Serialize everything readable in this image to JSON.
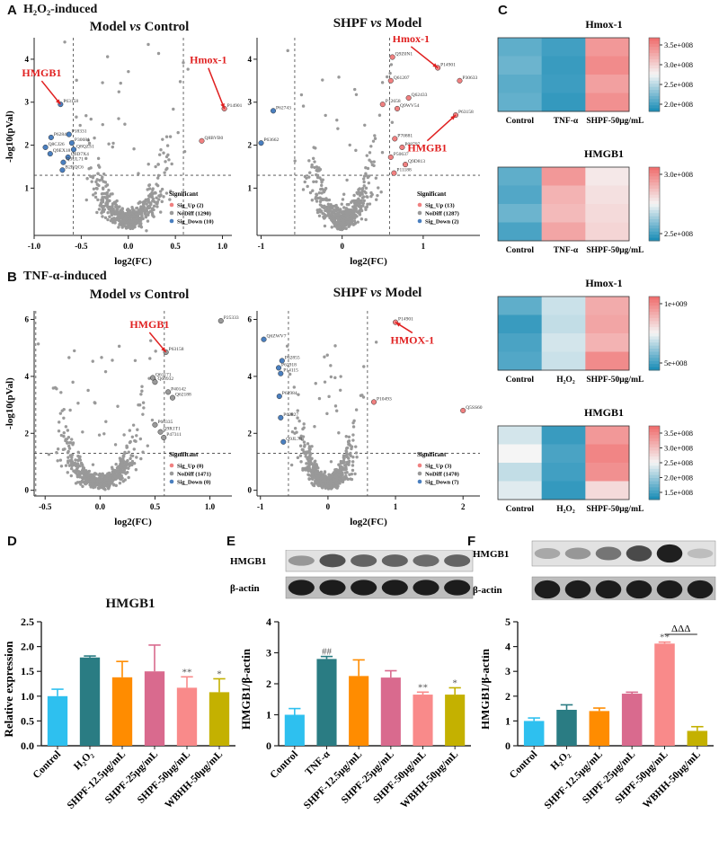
{
  "labels": {
    "A": "A",
    "A_sub": "H₂O₂-induced",
    "B": "B",
    "B_sub": "TNF-α-induced",
    "C": "C",
    "D": "D",
    "E": "E",
    "F": "F"
  },
  "colors": {
    "up": "#f08080",
    "down": "#4a7fbf",
    "nodiff": "#999999",
    "arrow": "#e02020",
    "heat_low": "#1f8fb8",
    "heat_mid": "#f5f5f5",
    "heat_high": "#f07070"
  },
  "volcano": [
    {
      "id": "A1",
      "title": "Model vs Control",
      "xlabel": "log2(FC)",
      "ylabel": "-log10(pVal)",
      "xlim": [
        -1.0,
        1.1
      ],
      "ylim": [
        -0.1,
        4.5
      ],
      "xticks": [
        "-1.0",
        "-0.5",
        "0.0",
        "0.5",
        "1.0"
      ],
      "xtick_vals": [
        -1.0,
        -0.5,
        0.0,
        0.5,
        1.0
      ],
      "yticks": [
        "1",
        "2",
        "3",
        "4"
      ],
      "ytick_vals": [
        1,
        2,
        3,
        4
      ],
      "vlines": [
        -0.585,
        0.585
      ],
      "hline": 1.3,
      "legend_title": "Significant",
      "legend": [
        "Sig_Up (2)",
        "NoDiff (1290)",
        "Sig_Down (10)"
      ],
      "points": [
        {
          "label": "P14901",
          "x": 1.02,
          "y": 2.85,
          "cls": "up"
        },
        {
          "label": "Q8BVB0",
          "x": 0.78,
          "y": 2.1,
          "cls": "up"
        },
        {
          "label": "P63158",
          "x": -0.72,
          "y": 2.95,
          "cls": "down"
        },
        {
          "label": "P62843",
          "x": -0.82,
          "y": 2.18,
          "cls": "down"
        },
        {
          "label": "P30681",
          "x": -0.6,
          "y": 2.05,
          "cls": "down"
        },
        {
          "label": "P18331",
          "x": -0.63,
          "y": 2.25,
          "cls": "down"
        },
        {
          "label": "Q8CJ26",
          "x": -0.88,
          "y": 1.95,
          "cls": "down"
        },
        {
          "label": "Q8QZS1",
          "x": -0.58,
          "y": 1.9,
          "cls": "down"
        },
        {
          "label": "Q9EX18",
          "x": -0.83,
          "y": 1.8,
          "cls": "down"
        },
        {
          "label": "Q9D7X4",
          "x": -0.64,
          "y": 1.72,
          "cls": "down"
        },
        {
          "label": "Q3UL71",
          "x": -0.69,
          "y": 1.6,
          "cls": "down"
        },
        {
          "label": "B2RQC6",
          "x": -0.7,
          "y": 1.42,
          "cls": "down"
        }
      ],
      "annotations": [
        {
          "text": "HMGB1",
          "target": 2,
          "tx": -0.92,
          "ty": 3.6
        },
        {
          "text": "Hmox-1",
          "target": 0,
          "tx": 0.85,
          "ty": 3.9
        }
      ],
      "cloud": {
        "n": 520,
        "xsd": 0.2,
        "curv": 11,
        "ymax": 4.4
      }
    },
    {
      "id": "A2",
      "title": "SHPF vs Model",
      "xlabel": "log2(FC)",
      "ylabel": "",
      "xlim": [
        -1.05,
        1.7
      ],
      "ylim": [
        -0.1,
        4.5
      ],
      "xticks": [
        "-1",
        "0",
        "1"
      ],
      "xtick_vals": [
        -1,
        0,
        1
      ],
      "yticks": [
        "1",
        "2",
        "3",
        "4"
      ],
      "ytick_vals": [
        1,
        2,
        3,
        4
      ],
      "vlines": [
        -0.585,
        0.585
      ],
      "hline": 1.3,
      "legend_title": "Significant",
      "legend": [
        "Sig_Up (13)",
        "NoDiff (1287)",
        "Sig_Down (2)"
      ],
      "points": [
        {
          "label": "Q9Z0N1",
          "x": 0.62,
          "y": 4.05,
          "cls": "up"
        },
        {
          "label": "P14901",
          "x": 1.18,
          "y": 3.8,
          "cls": "up"
        },
        {
          "label": "P30633",
          "x": 1.45,
          "y": 3.5,
          "cls": "up"
        },
        {
          "label": "Q61207",
          "x": 0.6,
          "y": 3.5,
          "cls": "up"
        },
        {
          "label": "Q62433",
          "x": 0.82,
          "y": 3.1,
          "cls": "up"
        },
        {
          "label": "P12658",
          "x": 0.5,
          "y": 2.95,
          "cls": "up"
        },
        {
          "label": "Q9WV54",
          "x": 0.68,
          "y": 2.85,
          "cls": "up"
        },
        {
          "label": "P63158",
          "x": 1.4,
          "y": 2.7,
          "cls": "up"
        },
        {
          "label": "P70881",
          "x": 0.65,
          "y": 2.15,
          "cls": "up"
        },
        {
          "label": "P08797",
          "x": 0.74,
          "y": 1.95,
          "cls": "up"
        },
        {
          "label": "P50637",
          "x": 0.6,
          "y": 1.72,
          "cls": "up"
        },
        {
          "label": "Q9D813",
          "x": 0.78,
          "y": 1.55,
          "cls": "up"
        },
        {
          "label": "P11188",
          "x": 0.64,
          "y": 1.35,
          "cls": "up"
        },
        {
          "label": "P62743",
          "x": -0.85,
          "y": 2.8,
          "cls": "down"
        },
        {
          "label": "P63662",
          "x": -1.0,
          "y": 2.05,
          "cls": "down"
        }
      ],
      "annotations": [
        {
          "text": "Hmox-1",
          "target": 1,
          "tx": 0.85,
          "ty": 4.4
        },
        {
          "text": "HMGB1",
          "target": 7,
          "tx": 1.05,
          "ty": 1.85
        }
      ],
      "cloud": {
        "n": 520,
        "xsd": 0.2,
        "curv": 11,
        "ymax": 4.2
      }
    },
    {
      "id": "B1",
      "title": "Model vs Control",
      "xlabel": "log2(FC)",
      "ylabel": "-log10(pVal)",
      "xlim": [
        -0.6,
        1.2
      ],
      "ylim": [
        -0.2,
        6.3
      ],
      "xticks": [
        "-0.5",
        "0.0",
        "0.5",
        "1.0"
      ],
      "xtick_vals": [
        -0.5,
        0.0,
        0.5,
        1.0
      ],
      "yticks": [
        "0",
        "2",
        "4",
        "6"
      ],
      "ytick_vals": [
        0,
        2,
        4,
        6
      ],
      "vlines": [
        -0.585,
        0.585
      ],
      "hline": 1.3,
      "legend_title": "Significant",
      "legend": [
        "Sig_Up (0)",
        "NoDiff (1471)",
        "Sig_Down (0)"
      ],
      "points": [
        {
          "label": "P25333",
          "x": 1.1,
          "y": 5.95,
          "cls": "nd"
        },
        {
          "label": "P63158",
          "x": 0.6,
          "y": 4.85,
          "cls": "nd"
        },
        {
          "label": "Q61171",
          "x": 0.48,
          "y": 3.95,
          "cls": "nd"
        },
        {
          "label": "Q60932",
          "x": 0.5,
          "y": 3.8,
          "cls": "nd"
        },
        {
          "label": "P40142",
          "x": 0.62,
          "y": 3.45,
          "cls": "nd"
        },
        {
          "label": "Q62188",
          "x": 0.66,
          "y": 3.25,
          "cls": "nd"
        },
        {
          "label": "P60335",
          "x": 0.5,
          "y": 2.3,
          "cls": "nd"
        },
        {
          "label": "Q9R1T1",
          "x": 0.55,
          "y": 2.05,
          "cls": "nd"
        },
        {
          "label": "P47311",
          "x": 0.58,
          "y": 1.85,
          "cls": "nd"
        }
      ],
      "annotations": [
        {
          "text": "HMGB1",
          "target": 1,
          "tx": 0.45,
          "ty": 5.7
        }
      ],
      "cloud": {
        "n": 620,
        "xsd": 0.18,
        "curv": 18,
        "ymax": 5.3
      }
    },
    {
      "id": "B2",
      "title": "SHPF vs Model",
      "xlabel": "log2(FC)",
      "ylabel": "",
      "xlim": [
        -1.05,
        2.25
      ],
      "ylim": [
        -0.2,
        6.3
      ],
      "xticks": [
        "-1",
        "0",
        "1",
        "2"
      ],
      "xtick_vals": [
        -1,
        0,
        1,
        2
      ],
      "yticks": [
        "0",
        "2",
        "4",
        "6"
      ],
      "ytick_vals": [
        0,
        2,
        4,
        6
      ],
      "vlines": [
        -0.585,
        0.585
      ],
      "hline": 1.3,
      "legend_title": "Significant",
      "legend": [
        "Sig_Up (3)",
        "NoDiff (1470)",
        "Sig_Down (7)"
      ],
      "points": [
        {
          "label": "P14901",
          "x": 1.0,
          "y": 5.9,
          "cls": "up"
        },
        {
          "label": "P10493",
          "x": 0.68,
          "y": 3.1,
          "cls": "up"
        },
        {
          "label": "Q5SS60",
          "x": 2.0,
          "y": 2.8,
          "cls": "up"
        },
        {
          "label": "Q6ZWV7",
          "x": -0.95,
          "y": 5.3,
          "cls": "down"
        },
        {
          "label": "P62855",
          "x": -0.68,
          "y": 4.55,
          "cls": "down"
        },
        {
          "label": "P62918",
          "x": -0.73,
          "y": 4.3,
          "cls": "down"
        },
        {
          "label": "P14115",
          "x": -0.7,
          "y": 4.1,
          "cls": "down"
        },
        {
          "label": "P62984",
          "x": -0.72,
          "y": 3.3,
          "cls": "down"
        },
        {
          "label": "P62827",
          "x": -0.7,
          "y": 2.55,
          "cls": "down"
        },
        {
          "label": "Q9JL78",
          "x": -0.66,
          "y": 1.7,
          "cls": "down"
        }
      ],
      "annotations": [
        {
          "text": "HMOX-1",
          "target": 0,
          "tx": 1.25,
          "ty": 5.15
        }
      ],
      "cloud": {
        "n": 620,
        "xsd": 0.2,
        "curv": 12,
        "ymax": 5.2
      }
    }
  ],
  "heatmaps": [
    {
      "id": "C1",
      "title": "Hmox-1",
      "cols": [
        "Control",
        "TNF-α",
        "SHPF-50μg/mL"
      ],
      "values": [
        [
          0.15,
          0.08,
          0.85
        ],
        [
          0.18,
          0.06,
          0.9
        ],
        [
          0.14,
          0.07,
          0.82
        ],
        [
          0.16,
          0.05,
          0.88
        ]
      ],
      "scale": [
        "3.5e+008",
        "3.0e+008",
        "2.5e+008",
        "2.0e+008"
      ]
    },
    {
      "id": "C2",
      "title": "HMGB1",
      "cols": [
        "Control",
        "TNF-α",
        "SHPF-50μg/mL"
      ],
      "values": [
        [
          0.15,
          0.85,
          0.55
        ],
        [
          0.12,
          0.75,
          0.58
        ],
        [
          0.18,
          0.72,
          0.6
        ],
        [
          0.1,
          0.8,
          0.62
        ]
      ],
      "scale": [
        "3.0e+008",
        "2.5e+008"
      ]
    },
    {
      "id": "C3",
      "title": "Hmox-1",
      "cols": [
        "Control",
        "H₂O₂",
        "SHPF-50μg/mL"
      ],
      "values": [
        [
          0.15,
          0.4,
          0.78
        ],
        [
          0.06,
          0.38,
          0.8
        ],
        [
          0.1,
          0.42,
          0.75
        ],
        [
          0.12,
          0.4,
          0.9
        ]
      ],
      "scale": [
        "1e+009",
        "5e+008"
      ]
    },
    {
      "id": "C4",
      "title": "HMGB1",
      "cols": [
        "Control",
        "H₂O₂",
        "SHPF-50μg/mL"
      ],
      "values": [
        [
          0.42,
          0.06,
          0.85
        ],
        [
          0.5,
          0.1,
          0.92
        ],
        [
          0.38,
          0.08,
          0.88
        ],
        [
          0.45,
          0.05,
          0.6
        ]
      ],
      "scale": [
        "3.5e+008",
        "3.0e+008",
        "2.5e+008",
        "2.0e+008",
        "1.5e+008"
      ]
    }
  ],
  "blots": {
    "E": {
      "rows": [
        "HMGB1",
        "β-actin"
      ],
      "lanes": 6,
      "band_intensity": [
        [
          0.3,
          0.7,
          0.6,
          0.6,
          0.55,
          0.6
        ],
        [
          1,
          1,
          1,
          1,
          1,
          1
        ]
      ]
    },
    "F": {
      "rows": [
        "HMGB1",
        "β-actin"
      ],
      "lanes": 6,
      "band_intensity": [
        [
          0.2,
          0.3,
          0.5,
          0.75,
          1.0,
          0.08
        ],
        [
          1,
          1,
          1,
          1,
          1,
          1
        ]
      ]
    }
  },
  "chart_data": [
    {
      "id": "D",
      "type": "bar",
      "title": "HMGB1",
      "ylabel": "Relative expression",
      "categories": [
        "Control",
        "H₂O₂",
        "SHPF-12.5μg/mL",
        "SHPF-25μg/mL",
        "SHPF-50μg/mL",
        "WBHH-50μg/mL"
      ],
      "values": [
        1.0,
        1.78,
        1.38,
        1.5,
        1.17,
        1.08
      ],
      "errors": [
        0.14,
        0.03,
        0.32,
        0.53,
        0.22,
        0.27
      ],
      "sig": [
        "",
        "",
        "",
        "",
        "**",
        "*"
      ],
      "colors": [
        "#2ec0ef",
        "#2a7c83",
        "#ff8c00",
        "#d96a8e",
        "#f98a8a",
        "#c4b100"
      ],
      "ylim": [
        0,
        2.5
      ],
      "yticks": [
        "0.0",
        "0.5",
        "1.0",
        "1.5",
        "2.0",
        "2.5"
      ],
      "ytick_vals": [
        0,
        0.5,
        1.0,
        1.5,
        2.0,
        2.5
      ]
    },
    {
      "id": "E",
      "type": "bar",
      "title": "",
      "ylabel": "HMGB1/β-actin",
      "categories": [
        "Control",
        "TNF-α",
        "SHPF-12.5μg/mL",
        "SHPF-25μg/mL",
        "SHPF-50μg/mL",
        "WBHH-50μg/mL"
      ],
      "values": [
        1.0,
        2.8,
        2.25,
        2.2,
        1.65,
        1.65
      ],
      "errors": [
        0.2,
        0.08,
        0.52,
        0.22,
        0.08,
        0.22
      ],
      "sig": [
        "",
        "##",
        "",
        "",
        "**",
        "*"
      ],
      "colors": [
        "#2ec0ef",
        "#2a7c83",
        "#ff8c00",
        "#d96a8e",
        "#f98a8a",
        "#c4b100"
      ],
      "ylim": [
        0,
        4
      ],
      "yticks": [
        "0",
        "1",
        "2",
        "3",
        "4"
      ],
      "ytick_vals": [
        0,
        1,
        2,
        3,
        4
      ]
    },
    {
      "id": "F",
      "type": "bar",
      "title": "",
      "ylabel": "HMGB1/β-actin",
      "categories": [
        "Control",
        "H₂O₂",
        "SHPF-12.5μg/mL",
        "SHPF-25μg/mL",
        "SHPF-50μg/mL",
        "WBHH-50μg/mL"
      ],
      "values": [
        1.0,
        1.45,
        1.4,
        2.1,
        4.12,
        0.6
      ],
      "errors": [
        0.12,
        0.2,
        0.12,
        0.06,
        0.06,
        0.17
      ],
      "sig": [
        "",
        "",
        "",
        "",
        "**",
        ""
      ],
      "bracket": {
        "from": 4,
        "to": 5,
        "text": "ΔΔΔ"
      },
      "colors": [
        "#2ec0ef",
        "#2a7c83",
        "#ff8c00",
        "#d96a8e",
        "#f98a8a",
        "#c4b100"
      ],
      "ylim": [
        0,
        5
      ],
      "yticks": [
        "0",
        "1",
        "2",
        "3",
        "4",
        "5"
      ],
      "ytick_vals": [
        0,
        1,
        2,
        3,
        4,
        5
      ]
    }
  ]
}
